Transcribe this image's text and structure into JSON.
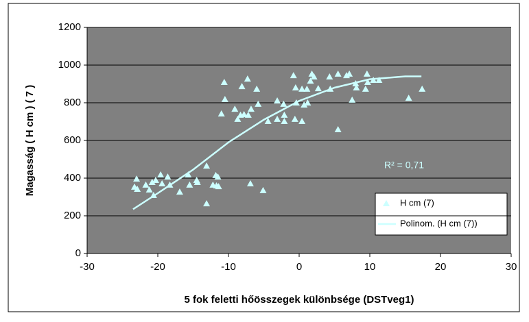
{
  "chart_data": {
    "type": "scatter",
    "xlabel": "5 fok feletti hőösszegek különbsége (DSTveg1)",
    "ylabel": "Magasság ( H cm )  ( 7 )",
    "annotation": "R² = 0,71",
    "xlim": [
      -30,
      30
    ],
    "xticks": [
      -30,
      -20,
      -10,
      0,
      10,
      20,
      30
    ],
    "ylim": [
      0,
      1200
    ],
    "yticks": [
      0,
      200,
      400,
      600,
      800,
      1000,
      1200
    ],
    "grid": true,
    "legend": "right",
    "series": [
      {
        "name": "H cm  (7)",
        "type": "scatter",
        "color": "#ccffff",
        "x": [
          -23.3,
          -23.0,
          -22.9,
          -21.7,
          -21.2,
          -20.8,
          -20.6,
          -20.3,
          -19.6,
          -19.4,
          -18.6,
          -18.3,
          -16.9,
          -15.7,
          -15.5,
          -14.5,
          -14.4,
          -13.1,
          -13.1,
          -12.2,
          -11.8,
          -11.7,
          -11.5,
          -11.4,
          -11.0,
          -10.6,
          -10.5,
          -9.1,
          -8.7,
          -8.3,
          -8.1,
          -7.8,
          -7.3,
          -7.2,
          -6.9,
          -6.8,
          -6.0,
          -5.8,
          -5.1,
          -4.4,
          -3.1,
          -3.1,
          -2.2,
          -2.1,
          -2.1,
          -0.8,
          -0.6,
          -0.5,
          -0.4,
          0.4,
          0.4,
          0.7,
          1.1,
          1.2,
          1.6,
          1.8,
          2.1,
          2.7,
          4.3,
          4.4,
          5.5,
          5.5,
          6.7,
          7.1,
          7.5,
          8.0,
          8.1,
          9.4,
          9.6,
          9.7,
          10.5,
          11.3,
          15.5,
          17.4
        ],
        "values": [
          353,
          396,
          342,
          364,
          338,
          378,
          309,
          389,
          418,
          371,
          407,
          364,
          327,
          418,
          364,
          389,
          378,
          465,
          265,
          364,
          415,
          360,
          407,
          356,
          742,
          909,
          818,
          767,
          713,
          735,
          887,
          738,
          927,
          735,
          371,
          767,
          873,
          793,
          335,
          702,
          811,
          713,
          793,
          702,
          735,
          945,
          713,
          880,
          800,
          702,
          873,
          789,
          873,
          800,
          916,
          953,
          938,
          876,
          938,
          873,
          658,
          953,
          945,
          953,
          815,
          902,
          880,
          873,
          953,
          909,
          920,
          920,
          825,
          873
        ]
      },
      {
        "name": "Polinom. (H cm  (7))",
        "type": "line",
        "color": "#ccffff",
        "x": [
          -23.5,
          -20,
          -15,
          -10,
          -5,
          0,
          5,
          10,
          15,
          17.3
        ],
        "values": [
          235,
          320,
          445,
          590,
          710,
          810,
          880,
          925,
          940,
          940
        ]
      }
    ]
  }
}
